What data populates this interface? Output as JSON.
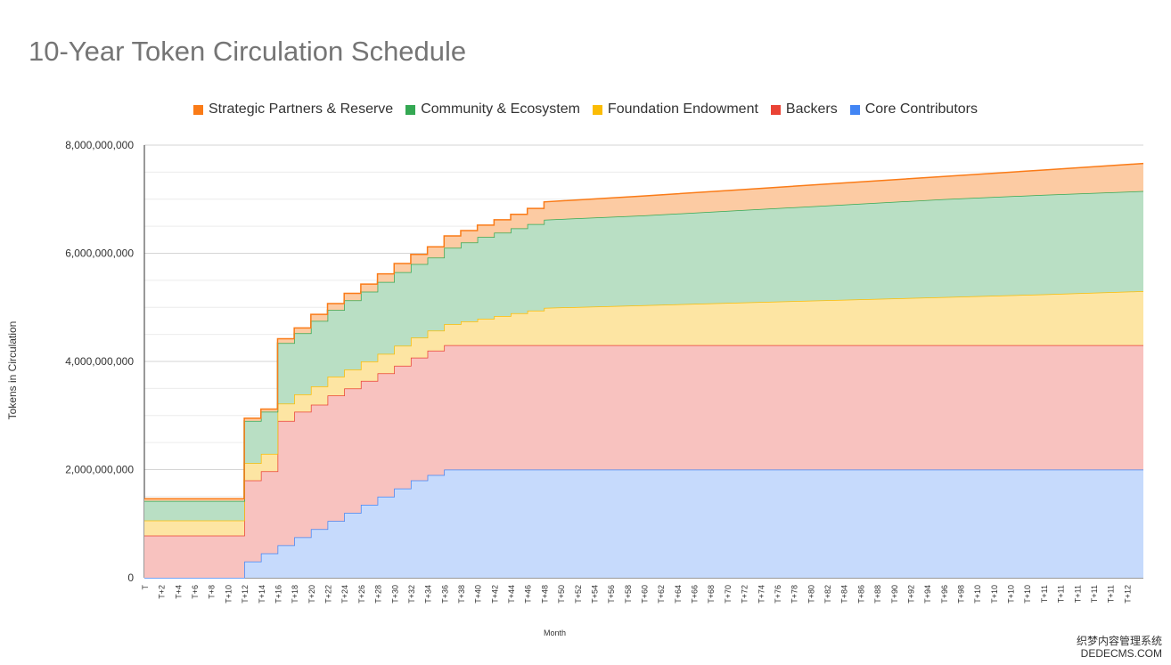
{
  "page": {
    "title": "10-Year Token Circulation Schedule"
  },
  "watermark": {
    "line1": "织梦内容管理系统",
    "line2": "DEDECMS.COM"
  },
  "chart_data": {
    "type": "area",
    "stacked": true,
    "title": "10-Year Token Circulation Schedule",
    "xlabel": "Month",
    "ylabel": "Tokens in Circulation",
    "ylim": [
      0,
      8000000000
    ],
    "yticks": [
      0,
      2000000000,
      4000000000,
      6000000000,
      8000000000
    ],
    "ytick_labels": [
      "0",
      "2,000,000,000",
      "4,000,000,000",
      "6,000,000,000",
      "8,000,000,000"
    ],
    "xtick_labels": [
      "T",
      "T+2",
      "T+4",
      "T+6",
      "T+8",
      "T+10",
      "T+12",
      "T+14",
      "T+16",
      "T+18",
      "T+20",
      "T+22",
      "T+24",
      "T+26",
      "T+28",
      "T+30",
      "T+32",
      "T+34",
      "T+36",
      "T+38",
      "T+40",
      "T+42",
      "T+44",
      "T+46",
      "T+48",
      "T+50",
      "T+52",
      "T+54",
      "T+56",
      "T+58",
      "T+60",
      "T+62",
      "T+64",
      "T+66",
      "T+68",
      "T+70",
      "T+72",
      "T+74",
      "T+76",
      "T+78",
      "T+80",
      "T+82",
      "T+84",
      "T+86",
      "T+88",
      "T+90",
      "T+92",
      "T+94",
      "T+96",
      "T+98",
      "T+10",
      "T+10",
      "T+10",
      "T+10",
      "T+11",
      "T+11",
      "T+11",
      "T+11",
      "T+11",
      "T+12"
    ],
    "grid": true,
    "legend_position": "top",
    "series": [
      {
        "name": "Core Contributors",
        "color": "#4285f4",
        "fill": "#c6dafc"
      },
      {
        "name": "Backers",
        "color": "#ea4335",
        "fill": "#f8c2bf"
      },
      {
        "name": "Foundation Endowment",
        "color": "#fbbc04",
        "fill": "#fde5a3"
      },
      {
        "name": "Community & Ecosystem",
        "color": "#34a853",
        "fill": "#b9dfc4"
      },
      {
        "name": "Strategic Partners & Reserve",
        "color": "#fa7b17",
        "fill": "#fccba3"
      }
    ],
    "legend_order": [
      "Strategic Partners & Reserve",
      "Community & Ecosystem",
      "Foundation Endowment",
      "Backers",
      "Core Contributors"
    ],
    "cumulative_points": {
      "months": [
        0,
        11,
        12,
        14,
        16,
        18,
        20,
        22,
        24,
        26,
        28,
        30,
        32,
        34,
        36,
        38,
        40,
        42,
        44,
        46,
        48,
        60,
        72,
        84,
        96,
        108,
        120
      ],
      "core_contributors": [
        0,
        0,
        300000000,
        450000000,
        600000000,
        750000000,
        900000000,
        1050000000,
        1200000000,
        1350000000,
        1500000000,
        1650000000,
        1800000000,
        1900000000,
        2000000000,
        2000000000,
        2000000000,
        2000000000,
        2000000000,
        2000000000,
        2000000000,
        2000000000,
        2000000000,
        2000000000,
        2000000000,
        2000000000,
        2000000000
      ],
      "backers_top": [
        780000000,
        780000000,
        1800000000,
        1970000000,
        2900000000,
        3070000000,
        3200000000,
        3370000000,
        3500000000,
        3640000000,
        3780000000,
        3920000000,
        4070000000,
        4200000000,
        4300000000,
        4300000000,
        4300000000,
        4300000000,
        4300000000,
        4300000000,
        4300000000,
        4300000000,
        4300000000,
        4300000000,
        4300000000,
        4300000000,
        4300000000
      ],
      "foundation_top": [
        1060000000,
        1060000000,
        2120000000,
        2290000000,
        3220000000,
        3390000000,
        3540000000,
        3720000000,
        3850000000,
        4000000000,
        4140000000,
        4290000000,
        4440000000,
        4570000000,
        4690000000,
        4740000000,
        4790000000,
        4840000000,
        4890000000,
        4940000000,
        4990000000,
        5040000000,
        5090000000,
        5140000000,
        5190000000,
        5240000000,
        5300000000
      ],
      "community_top": [
        1420000000,
        1420000000,
        2900000000,
        3070000000,
        4340000000,
        4520000000,
        4750000000,
        4950000000,
        5130000000,
        5290000000,
        5470000000,
        5650000000,
        5800000000,
        5920000000,
        6100000000,
        6200000000,
        6300000000,
        6380000000,
        6460000000,
        6540000000,
        6620000000,
        6700000000,
        6800000000,
        6900000000,
        7000000000,
        7080000000,
        7150000000
      ],
      "strategic_top": [
        1460000000,
        1460000000,
        2950000000,
        3120000000,
        4420000000,
        4620000000,
        4870000000,
        5070000000,
        5260000000,
        5430000000,
        5620000000,
        5810000000,
        5980000000,
        6120000000,
        6320000000,
        6420000000,
        6520000000,
        6620000000,
        6720000000,
        6830000000,
        6950000000,
        7060000000,
        7180000000,
        7300000000,
        7420000000,
        7540000000,
        7660000000
      ]
    }
  }
}
